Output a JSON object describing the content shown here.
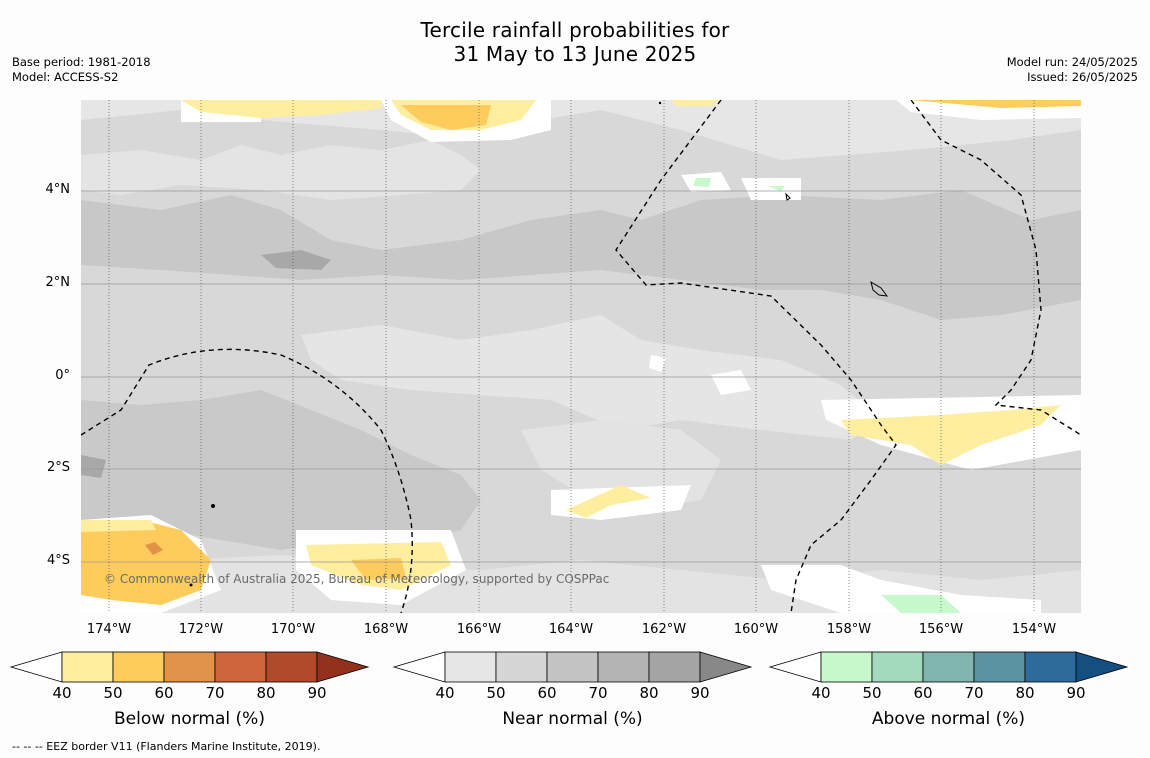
{
  "title": {
    "line1": "Tercile rainfall probabilities for",
    "line2": "31 May to 13 June 2025"
  },
  "meta": {
    "base_period": "Base period: 1981-2018",
    "model": "Model: ACCESS-S2",
    "model_run": "Model run: 24/05/2025",
    "issued": "Issued: 26/05/2025"
  },
  "axes": {
    "lat_labels": [
      "4°N",
      "2°N",
      "0°",
      "2°S",
      "4°S"
    ],
    "lon_labels": [
      "174°W",
      "172°W",
      "170°W",
      "168°W",
      "166°W",
      "164°W",
      "162°W",
      "160°W",
      "158°W",
      "156°W",
      "154°W"
    ]
  },
  "copyright": "© Commonwealth of Australia 2025, Bureau of Meteorology, supported by COSPPac",
  "colorbars": [
    {
      "title": "Below normal (%)",
      "ticks": [
        "40",
        "50",
        "60",
        "70",
        "80",
        "90"
      ],
      "colors": [
        "#ffeda0",
        "#fecc5c",
        "#e3924a",
        "#d0643a",
        "#b14a2a",
        "#92321c"
      ]
    },
    {
      "title": "Near normal (%)",
      "ticks": [
        "40",
        "50",
        "60",
        "70",
        "80",
        "90"
      ],
      "colors": [
        "#e6e6e6",
        "#d6d6d6",
        "#c4c4c4",
        "#b4b4b4",
        "#a4a4a4",
        "#888888"
      ]
    },
    {
      "title": "Above normal (%)",
      "ticks": [
        "40",
        "50",
        "60",
        "70",
        "80",
        "90"
      ],
      "colors": [
        "#c7f9cc",
        "#a3d9bd",
        "#80b5b0",
        "#5c93a0",
        "#2f6a9c",
        "#154f82"
      ]
    }
  ],
  "footnote": "--  --  -- EEZ border V11 (Flanders Marine Institute, 2019).",
  "colors": {
    "near_40": "#e6e6e6",
    "near_50": "#d6d6d6",
    "near_60": "#c4c4c4",
    "near_70": "#b4b4b4",
    "below_40": "#ffeda0",
    "below_50": "#fecc5c",
    "below_60": "#e3924a",
    "above_40": "#c7f9cc"
  }
}
